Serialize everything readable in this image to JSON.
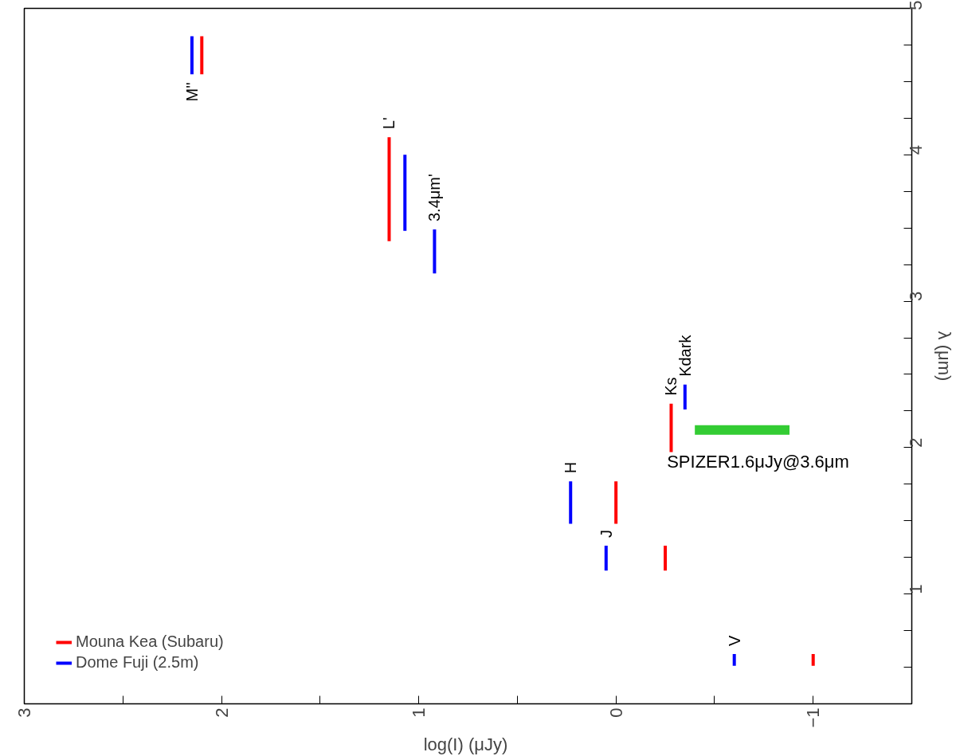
{
  "chart_data": {
    "type": "line",
    "xlabel": "log(I)  (μJy)",
    "ylabel": "λ (μm)",
    "xlim": [
      3,
      -1.5
    ],
    "ylim": [
      0.25,
      5
    ],
    "xticks": [
      3,
      {
        "value": 2.5,
        "label": null
      },
      2,
      {
        "value": 1.5,
        "label": null
      },
      1,
      {
        "value": 0.5,
        "label": null
      },
      0,
      {
        "value": -0.5,
        "label": null
      },
      {
        "value": -1,
        "label": "−1"
      }
    ],
    "yticks": [
      {
        "value": 0.25,
        "label": null
      },
      {
        "value": 0.5,
        "label": null
      },
      {
        "value": 0.75,
        "label": null
      },
      1,
      {
        "value": 1.25,
        "label": null
      },
      {
        "value": 1.5,
        "label": null
      },
      {
        "value": 1.75,
        "label": null
      },
      2,
      {
        "value": 2.25,
        "label": null
      },
      {
        "value": 2.5,
        "label": null
      },
      {
        "value": 2.75,
        "label": null
      },
      3,
      {
        "value": 3.25,
        "label": null
      },
      {
        "value": 3.5,
        "label": null
      },
      {
        "value": 3.75,
        "label": null
      },
      4,
      {
        "value": 4.25,
        "label": null
      },
      {
        "value": 4.5,
        "label": null
      },
      {
        "value": 4.75,
        "label": null
      },
      5
    ],
    "series": [
      {
        "name": "Mouna Kea (Subaru)",
        "color": "#ff0000",
        "x": [
          -1.0,
          -1.0,
          null,
          -0.25,
          -0.25,
          null,
          0.0,
          0.0,
          null,
          -0.28,
          -0.28,
          null,
          1.15,
          1.15,
          null,
          2.1,
          2.1
        ],
        "values": [
          0.51,
          0.59,
          null,
          1.16,
          1.33,
          null,
          1.48,
          1.77,
          null,
          1.97,
          2.3,
          null,
          3.41,
          4.12,
          null,
          4.55,
          4.81
        ]
      },
      {
        "name": "Dome Fuji (2.5m)",
        "color": "#0000ff",
        "x": [
          -0.6,
          -0.6,
          null,
          0.05,
          0.05,
          null,
          0.23,
          0.23,
          null,
          -0.35,
          -0.35,
          null,
          0.92,
          0.92,
          null,
          1.07,
          1.07,
          null,
          2.15,
          2.15
        ],
        "values": [
          0.51,
          0.59,
          null,
          1.16,
          1.33,
          null,
          1.48,
          1.77,
          null,
          2.26,
          2.43,
          null,
          3.19,
          3.49,
          null,
          3.48,
          4.0,
          null,
          4.55,
          4.81
        ]
      },
      {
        "color": "#33cc33",
        "x": [
          -0.4,
          -0.88
        ],
        "values": [
          2.12,
          2.12
        ]
      }
    ],
    "annotations": [
      {
        "text": "V",
        "x": -0.6,
        "y": 0.59
      },
      {
        "text": "J",
        "x": 0.05,
        "y": 1.33
      },
      {
        "text": "H",
        "x": 0.23,
        "y": 1.77
      },
      {
        "text": "Ks",
        "x": -0.28,
        "y": 2.3
      },
      {
        "text": "Kdark",
        "x": -0.35,
        "y": 2.43
      },
      {
        "text": "3.4μm'",
        "x": 0.92,
        "y": 3.49
      },
      {
        "text": "L'",
        "x": 1.15,
        "y": 4.12
      },
      {
        "text": "M''",
        "x": 2.15,
        "y": 4.55
      },
      {
        "text": "SPIZER1.6μJy@3.6μm",
        "x": -0.4,
        "y": 2.12
      }
    ],
    "legend": "bottom left",
    "grid": false,
    "marker": "none",
    "line_style": "solid"
  }
}
